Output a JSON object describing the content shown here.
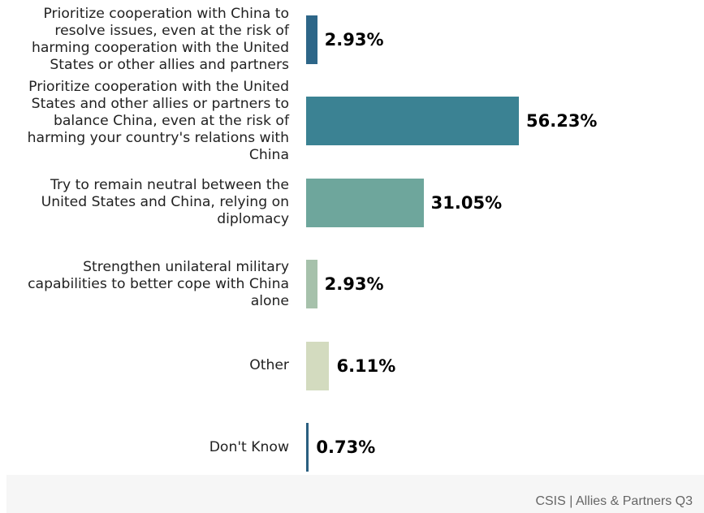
{
  "chart_data": {
    "type": "bar",
    "orientation": "horizontal",
    "categories": [
      "Prioritize cooperation with China to resolve issues, even at the risk of harming cooperation with the United States or other allies and partners",
      "Prioritize cooperation with the United States and other allies or partners to balance China, even at the risk of harming your country's relations with China",
      "Try to remain neutral between the United States and China, relying on diplomacy",
      "Strengthen unilateral military capabilities to better cope with China alone",
      "Other",
      "Don't Know"
    ],
    "values": [
      2.93,
      56.23,
      31.05,
      2.93,
      6.11,
      0.73
    ],
    "value_labels": [
      "2.93%",
      "56.23%",
      "31.05%",
      "2.93%",
      "6.11%",
      "0.73%"
    ],
    "colors": [
      "#2d6688",
      "#3b8293",
      "#6ea69c",
      "#a6c1ab",
      "#d3dbbf",
      "#2a5f80"
    ],
    "title": "",
    "xlabel": "",
    "ylabel": "",
    "grid": false
  },
  "footer": {
    "source": "CSIS | Allies & Partners Q3"
  }
}
